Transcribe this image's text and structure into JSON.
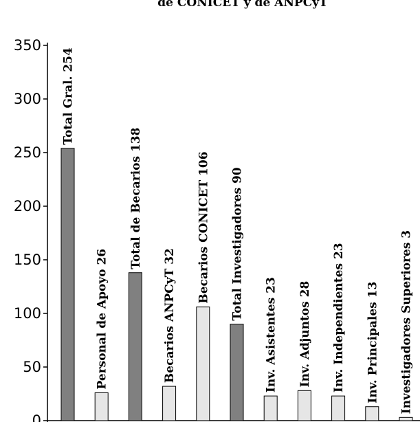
{
  "chart_data": {
    "type": "bar",
    "title": "de CONICET y de ANPCyT",
    "xlabel": "",
    "ylabel": "",
    "ylim": [
      0,
      350
    ],
    "yticks": [
      0,
      50,
      100,
      150,
      200,
      250,
      300,
      350
    ],
    "grid": false,
    "categories": [
      "Total Gral.",
      "Personal de Apoyo",
      "Total de Becarios",
      "Becarios ANPCyT",
      "Becarios CONICET",
      "Total Investigadores",
      "Inv. Asistentes",
      "Inv. Adjuntos",
      "Inv. Independientes",
      "Inv. Principales",
      "Investigadores Superiores"
    ],
    "values": [
      254,
      26,
      138,
      32,
      106,
      90,
      23,
      28,
      23,
      13,
      3
    ],
    "bar_labels": [
      "Total Gral. 254",
      "Personal de Apoyo 26",
      "Total de Becarios 138",
      "Becarios ANPCyT 32",
      "Becarios CONICET 106",
      "Total Investigadores 90",
      "Inv. Asistentes 23",
      "Inv. Adjuntos 28",
      "Inv. Independientes 23",
      "Inv. Principales 13",
      "Investigadores Superiores 3"
    ],
    "bar_colors": [
      "#808080",
      "#e6e6e6",
      "#808080",
      "#e6e6e6",
      "#e6e6e6",
      "#808080",
      "#e6e6e6",
      "#e6e6e6",
      "#e6e6e6",
      "#e6e6e6",
      "#e6e6e6"
    ],
    "axis_color": "#000000",
    "bar_outline_color": "#000000"
  }
}
